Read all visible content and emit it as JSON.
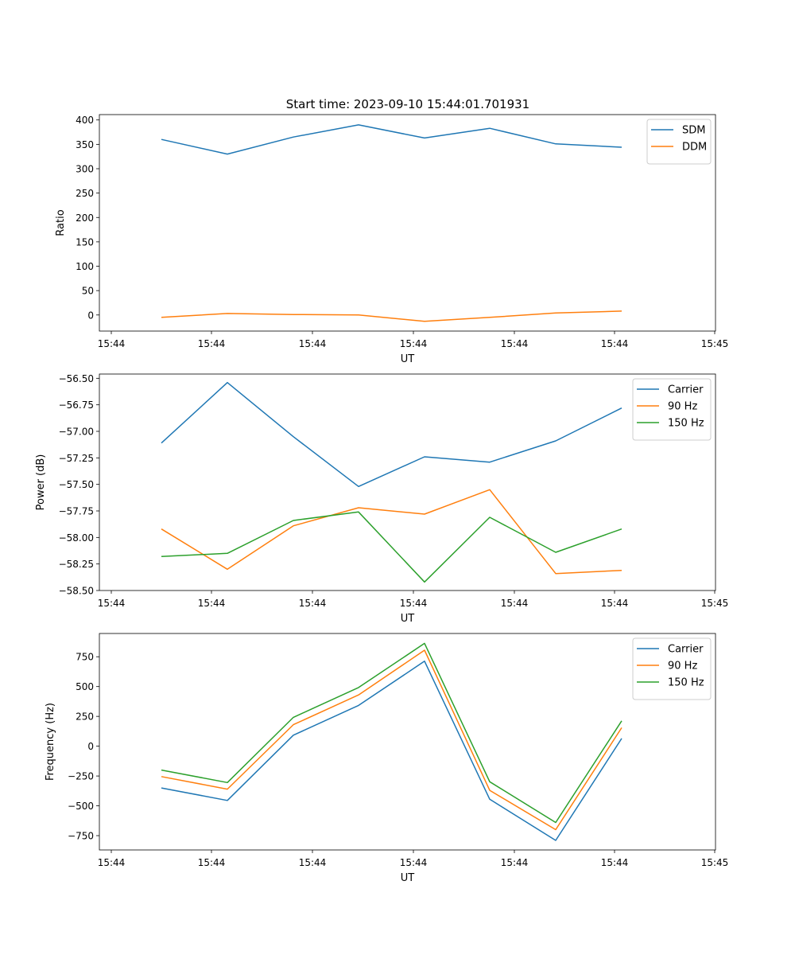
{
  "figure_title": "Start time: 2023-09-10 15:44:01.701931",
  "colors": {
    "blue": "#1f77b4",
    "orange": "#ff7f0e",
    "green": "#2ca02c"
  },
  "chart_data": [
    {
      "type": "line",
      "title": "Start time: 2023-09-10 15:44:01.701931",
      "xlabel": "UT",
      "ylabel": "Ratio",
      "x_tick_labels": [
        "15:44",
        "15:44",
        "15:44",
        "15:44",
        "15:44",
        "15:44",
        "15:45"
      ],
      "yticks": [
        0,
        50,
        100,
        150,
        200,
        250,
        300,
        350,
        400
      ],
      "ylim": [
        -33,
        411
      ],
      "legend_position": "top-right",
      "series": [
        {
          "name": "SDM",
          "color": "#1f77b4",
          "values": [
            360,
            330,
            365,
            390,
            363,
            383,
            351,
            344
          ]
        },
        {
          "name": "DDM",
          "color": "#ff7f0e",
          "values": [
            -5,
            3,
            1,
            0,
            -13,
            -5,
            4,
            8
          ]
        }
      ]
    },
    {
      "type": "line",
      "title": "",
      "xlabel": "UT",
      "ylabel": "Power (dB)",
      "x_tick_labels": [
        "15:44",
        "15:44",
        "15:44",
        "15:44",
        "15:44",
        "15:44",
        "15:45"
      ],
      "yticks": [
        -56.5,
        -56.75,
        -57.0,
        -57.25,
        -57.5,
        -57.75,
        -58.0,
        -58.25,
        -58.5
      ],
      "ytick_labels": [
        "−56.50",
        "−56.75",
        "−57.00",
        "−57.25",
        "−57.50",
        "−57.75",
        "−58.00",
        "−58.25",
        "−58.50"
      ],
      "ylim": [
        -58.5,
        -56.46
      ],
      "legend_position": "top-right",
      "series": [
        {
          "name": "Carrier",
          "color": "#1f77b4",
          "values": [
            -57.11,
            -56.54,
            -57.05,
            -57.52,
            -57.24,
            -57.29,
            -57.09,
            -56.78
          ]
        },
        {
          "name": "90 Hz",
          "color": "#ff7f0e",
          "values": [
            -57.92,
            -58.3,
            -57.89,
            -57.72,
            -57.78,
            -57.55,
            -58.34,
            -58.31
          ]
        },
        {
          "name": "150 Hz",
          "color": "#2ca02c",
          "values": [
            -58.18,
            -58.15,
            -57.84,
            -57.76,
            -58.42,
            -57.81,
            -58.14,
            -57.92
          ]
        }
      ]
    },
    {
      "type": "line",
      "title": "",
      "xlabel": "UT",
      "ylabel": "Frequency (Hz)",
      "x_tick_labels": [
        "15:44",
        "15:44",
        "15:44",
        "15:44",
        "15:44",
        "15:44",
        "15:45"
      ],
      "yticks": [
        -750,
        -500,
        -250,
        0,
        250,
        500,
        750
      ],
      "ytick_labels": [
        "−750",
        "−500",
        "−250",
        "0",
        "250",
        "500",
        "750"
      ],
      "ylim": [
        -870,
        945
      ],
      "legend_position": "top-right",
      "series": [
        {
          "name": "Carrier",
          "color": "#1f77b4",
          "values": [
            -350,
            -455,
            92,
            342,
            713,
            -445,
            -790,
            65
          ]
        },
        {
          "name": "90 Hz",
          "color": "#ff7f0e",
          "values": [
            -255,
            -360,
            180,
            430,
            805,
            -370,
            -700,
            155
          ]
        },
        {
          "name": "150 Hz",
          "color": "#2ca02c",
          "values": [
            -200,
            -305,
            242,
            492,
            862,
            -298,
            -640,
            212
          ]
        }
      ]
    }
  ]
}
